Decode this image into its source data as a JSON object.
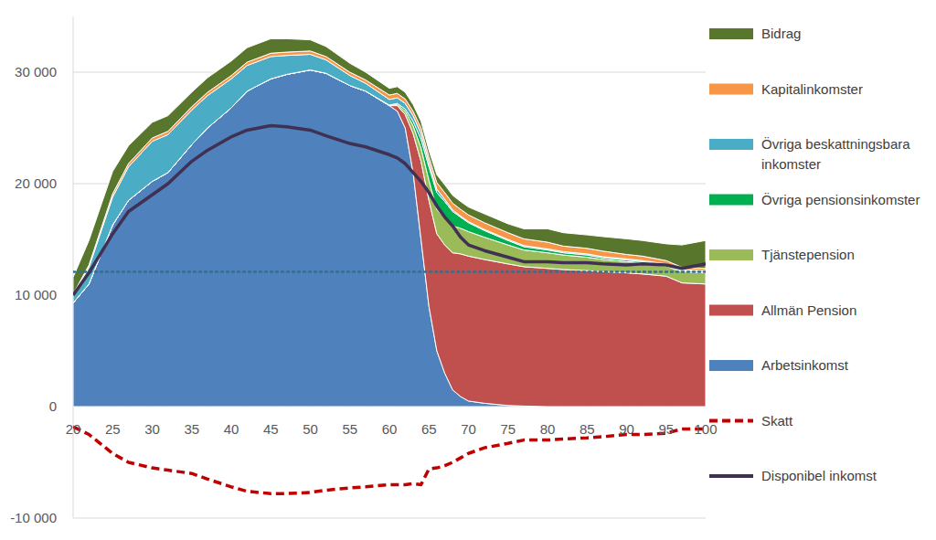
{
  "chart_data": {
    "type": "area",
    "stacked": true,
    "grid": true,
    "legend": "right",
    "x": [
      20,
      22,
      25,
      27,
      30,
      32,
      35,
      37,
      40,
      42,
      45,
      47,
      50,
      52,
      55,
      57,
      60,
      61,
      62,
      63,
      64,
      65,
      66,
      67,
      68,
      69,
      70,
      72,
      75,
      77,
      80,
      82,
      85,
      87,
      90,
      92,
      95,
      97,
      100
    ],
    "xlim": [
      20,
      100
    ],
    "xticks": [
      20,
      25,
      30,
      35,
      40,
      45,
      50,
      55,
      60,
      65,
      70,
      75,
      80,
      85,
      90,
      95,
      100
    ],
    "ylim": [
      -10000,
      35000
    ],
    "yticks": [
      {
        "value": -10000,
        "label": "-10 000"
      },
      0,
      {
        "value": 10000,
        "label": "10 000"
      },
      {
        "value": 20000,
        "label": "20 000"
      },
      {
        "value": 30000,
        "label": "30 000"
      }
    ],
    "series": [
      {
        "name": "Arbetsinkomst",
        "type": "area",
        "color": "#4f81bd",
        "values": [
          9300,
          11000,
          16300,
          18500,
          20200,
          21000,
          23500,
          25000,
          26800,
          28300,
          29400,
          29800,
          30200,
          29900,
          28800,
          28300,
          27000,
          26500,
          25000,
          21000,
          15000,
          9000,
          5000,
          3000,
          1500,
          900,
          500,
          300,
          100,
          50,
          0,
          0,
          0,
          0,
          0,
          0,
          0,
          0,
          0
        ]
      },
      {
        "name": "Allmän Pension",
        "type": "area",
        "color": "#c0504d",
        "values": [
          0,
          0,
          0,
          0,
          0,
          0,
          0,
          0,
          0,
          0,
          0,
          0,
          0,
          0,
          0,
          0,
          0,
          500,
          1200,
          3500,
          7000,
          9500,
          10500,
          11500,
          12300,
          12800,
          13000,
          12900,
          12700,
          12500,
          12400,
          12300,
          12200,
          12100,
          12000,
          11900,
          11700,
          11100,
          11000
        ]
      },
      {
        "name": "Tjänstepension",
        "type": "area",
        "color": "#9bbb59",
        "values": [
          0,
          0,
          0,
          0,
          0,
          0,
          0,
          0,
          0,
          0,
          0,
          0,
          0,
          0,
          0,
          0,
          0,
          100,
          300,
          700,
          1200,
          1800,
          2200,
          2400,
          2400,
          2300,
          2200,
          2000,
          1700,
          1500,
          1400,
          1300,
          1200,
          1100,
          1000,
          1000,
          900,
          1000,
          1000
        ]
      },
      {
        "name": "Övriga pensionsinkomster",
        "type": "area",
        "color": "#00b050",
        "values": [
          0,
          0,
          0,
          0,
          0,
          0,
          0,
          0,
          0,
          0,
          0,
          0,
          0,
          0,
          0,
          0,
          50,
          100,
          200,
          400,
          800,
          1200,
          1500,
          1500,
          1300,
          1000,
          800,
          600,
          400,
          300,
          250,
          200,
          200,
          150,
          150,
          100,
          100,
          100,
          100
        ]
      },
      {
        "name": "Övriga beskattningsbara inkomster",
        "type": "area",
        "color": "#4bacc6",
        "values": [
          700,
          1500,
          2500,
          3000,
          3600,
          3400,
          3100,
          2900,
          2600,
          2300,
          2000,
          1700,
          1400,
          1200,
          900,
          700,
          500,
          500,
          500,
          500,
          500,
          400,
          300,
          200,
          150,
          100,
          100,
          100,
          100,
          100,
          100,
          100,
          100,
          100,
          100,
          100,
          100,
          100,
          100
        ]
      },
      {
        "name": "Kapitalinkomster",
        "type": "area",
        "color": "#f79646",
        "values": [
          100,
          200,
          300,
          300,
          300,
          300,
          300,
          300,
          300,
          300,
          300,
          300,
          300,
          300,
          300,
          300,
          400,
          400,
          400,
          400,
          500,
          500,
          600,
          600,
          600,
          600,
          600,
          600,
          600,
          600,
          600,
          500,
          500,
          500,
          400,
          400,
          300,
          200,
          200
        ]
      },
      {
        "name": "Bidrag",
        "type": "area",
        "color": "#58762c",
        "values": [
          1500,
          2200,
          2000,
          1600,
          1400,
          1400,
          1300,
          1300,
          1300,
          1300,
          1300,
          1200,
          1000,
          900,
          800,
          700,
          600,
          600,
          600,
          600,
          600,
          600,
          700,
          700,
          700,
          700,
          700,
          800,
          800,
          900,
          1200,
          1200,
          1200,
          1300,
          1400,
          1400,
          1500,
          2000,
          2500
        ]
      },
      {
        "type": "line",
        "line_style": "dotted",
        "color": "#31708f",
        "values": [
          12100,
          12100,
          12100,
          12100,
          12100,
          12100,
          12100,
          12100,
          12100,
          12100,
          12100,
          12100,
          12100,
          12100,
          12100,
          12100,
          12100,
          12100,
          12100,
          12100,
          12100,
          12100,
          12100,
          12100,
          12100,
          12100,
          12100,
          12100,
          12100,
          12100,
          12100,
          12100,
          12100,
          12100,
          12100,
          12100,
          12100,
          12100,
          12100
        ]
      },
      {
        "name": "Skatt",
        "type": "line",
        "line_style": "dashed",
        "color": "#c00000",
        "values": [
          -1800,
          -2500,
          -4200,
          -5000,
          -5500,
          -5700,
          -6000,
          -6500,
          -7200,
          -7600,
          -7800,
          -7800,
          -7700,
          -7500,
          -7300,
          -7200,
          -7000,
          -7000,
          -7000,
          -6900,
          -7000,
          -5600,
          -5500,
          -5300,
          -5000,
          -4600,
          -4200,
          -3700,
          -3300,
          -3000,
          -3000,
          -2900,
          -2800,
          -2700,
          -2500,
          -2500,
          -2400,
          -2000,
          -2000
        ]
      },
      {
        "name": "Disponibel inkomst",
        "type": "line",
        "line_style": "solid",
        "color": "#403152",
        "values": [
          10000,
          12000,
          15500,
          17500,
          19000,
          20000,
          22000,
          23000,
          24200,
          24800,
          25200,
          25100,
          24800,
          24300,
          23600,
          23300,
          22600,
          22300,
          21800,
          21000,
          20200,
          19200,
          18000,
          17000,
          16200,
          15200,
          14500,
          14000,
          13400,
          13000,
          13000,
          12900,
          12900,
          12800,
          12700,
          12800,
          12700,
          12400,
          12800
        ]
      }
    ]
  }
}
